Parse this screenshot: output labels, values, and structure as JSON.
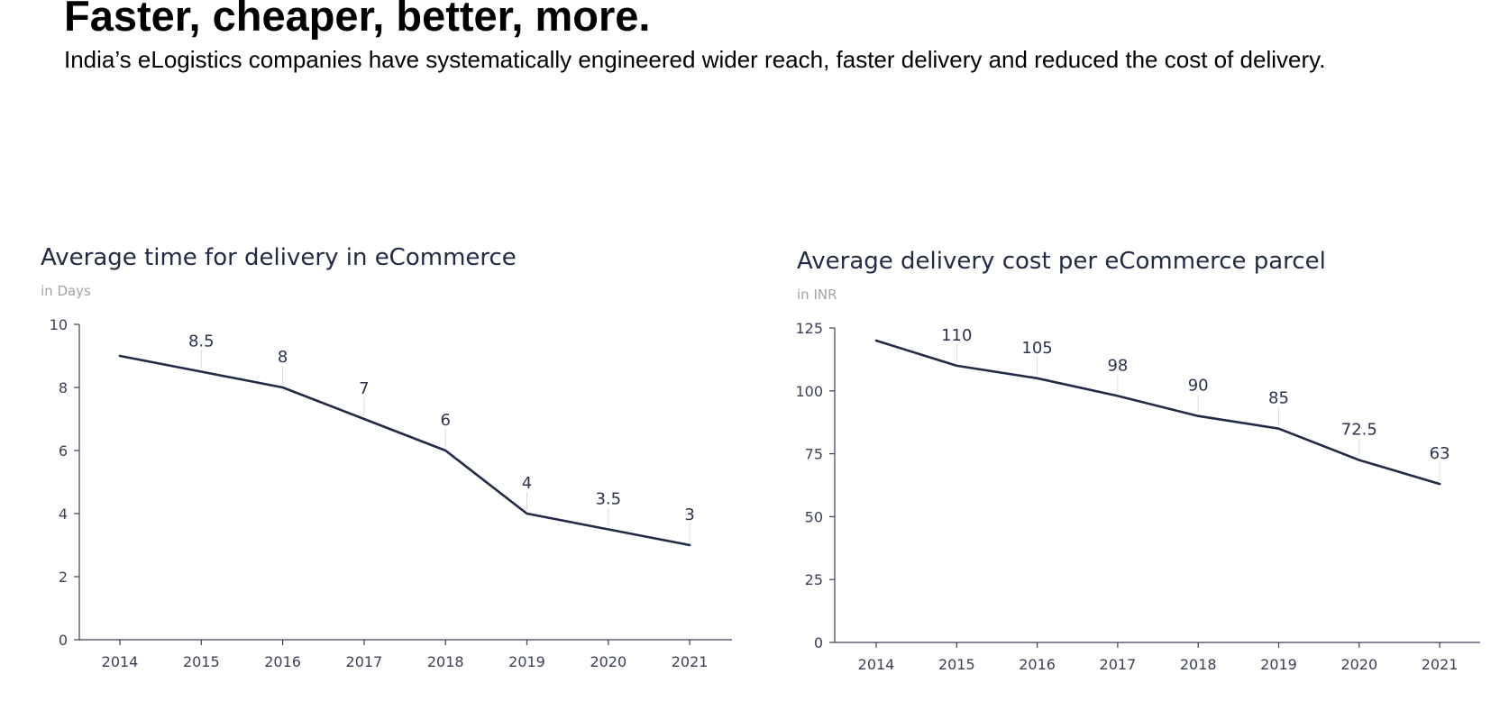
{
  "headline": "Faster, cheaper, better, more.",
  "subheadline": "India’s eLogistics companies have systematically engineered wider reach, faster delivery and reduced the cost of delivery.",
  "colors": {
    "series": "#222b45",
    "title": "#222b45",
    "subtitle": "#a3a3a3",
    "axis": "#3c4157"
  },
  "chart_data": [
    {
      "type": "line",
      "title": "Average time for delivery in eCommerce",
      "subtitle": "in Days",
      "categories": [
        "2014",
        "2015",
        "2016",
        "2017",
        "2018",
        "2019",
        "2020",
        "2021"
      ],
      "series": [
        {
          "values": [
            9,
            8.5,
            8,
            7,
            6,
            4,
            3.5,
            3
          ]
        }
      ],
      "data_labels": [
        "",
        "8.5",
        "8",
        "7",
        "6",
        "4",
        "3.5",
        "3"
      ],
      "ylim": [
        0,
        10
      ],
      "yticks": [
        0,
        2,
        4,
        6,
        8,
        10
      ],
      "grid": false,
      "legend": "none"
    },
    {
      "type": "line",
      "title": "Average delivery cost per eCommerce parcel",
      "subtitle": "in INR",
      "categories": [
        "2014",
        "2015",
        "2016",
        "2017",
        "2018",
        "2019",
        "2020",
        "2021"
      ],
      "series": [
        {
          "values": [
            120,
            110,
            105,
            98,
            90,
            85,
            72.5,
            63
          ]
        }
      ],
      "data_labels": [
        "",
        "110",
        "105",
        "98",
        "90",
        "85",
        "72.5",
        "63"
      ],
      "ylim": [
        0,
        125
      ],
      "yticks": [
        0,
        25,
        50,
        75,
        100,
        125
      ],
      "grid": false,
      "legend": "none"
    }
  ]
}
